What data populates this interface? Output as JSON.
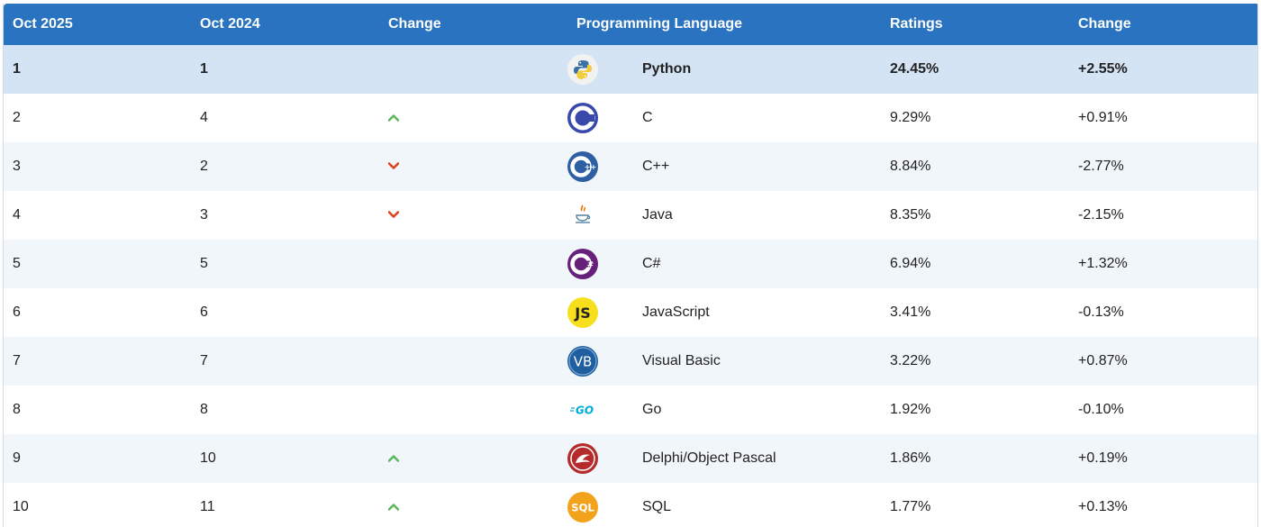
{
  "header": {
    "col_oct2025": "Oct 2025",
    "col_oct2024": "Oct 2024",
    "col_change_rank": "Change",
    "col_language": "Programming Language",
    "col_ratings": "Ratings",
    "col_change_rating": "Change"
  },
  "rows": [
    {
      "rank_now": "1",
      "rank_prev": "1",
      "trend": "none",
      "language": "Python",
      "logo": "python-icon",
      "rating": "24.45%",
      "change": "+2.55%"
    },
    {
      "rank_now": "2",
      "rank_prev": "4",
      "trend": "up",
      "language": "C",
      "logo": "c-icon",
      "rating": "9.29%",
      "change": "+0.91%"
    },
    {
      "rank_now": "3",
      "rank_prev": "2",
      "trend": "down",
      "language": "C++",
      "logo": "cpp-icon",
      "rating": "8.84%",
      "change": "-2.77%"
    },
    {
      "rank_now": "4",
      "rank_prev": "3",
      "trend": "down",
      "language": "Java",
      "logo": "java-icon",
      "rating": "8.35%",
      "change": "-2.15%"
    },
    {
      "rank_now": "5",
      "rank_prev": "5",
      "trend": "none",
      "language": "C#",
      "logo": "csharp-icon",
      "rating": "6.94%",
      "change": "+1.32%"
    },
    {
      "rank_now": "6",
      "rank_prev": "6",
      "trend": "none",
      "language": "JavaScript",
      "logo": "javascript-icon",
      "rating": "3.41%",
      "change": "-0.13%"
    },
    {
      "rank_now": "7",
      "rank_prev": "7",
      "trend": "none",
      "language": "Visual Basic",
      "logo": "visual-basic-icon",
      "rating": "3.22%",
      "change": "+0.87%"
    },
    {
      "rank_now": "8",
      "rank_prev": "8",
      "trend": "none",
      "language": "Go",
      "logo": "go-icon",
      "rating": "1.92%",
      "change": "-0.10%"
    },
    {
      "rank_now": "9",
      "rank_prev": "10",
      "trend": "up",
      "language": "Delphi/Object Pascal",
      "logo": "delphi-icon",
      "rating": "1.86%",
      "change": "+0.19%"
    },
    {
      "rank_now": "10",
      "rank_prev": "11",
      "trend": "up",
      "language": "SQL",
      "logo": "sql-icon",
      "rating": "1.77%",
      "change": "+0.13%"
    }
  ],
  "logo_text": {
    "javascript": "JS",
    "visual_basic": "VB",
    "go": "GO",
    "sql": "SQL"
  },
  "colors": {
    "header_bg": "#2a73c0",
    "highlight_row": "#d4e4f5",
    "up_arrow": "#5cb85c",
    "down_arrow": "#e0401c"
  }
}
